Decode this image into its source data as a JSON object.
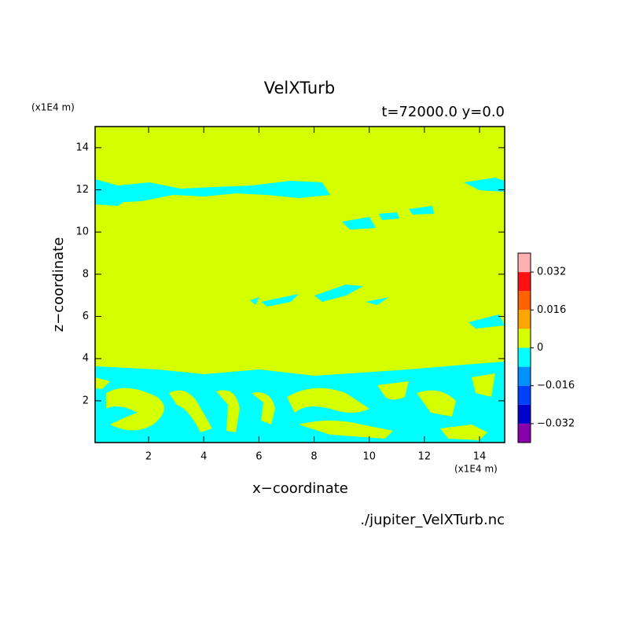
{
  "chart_data": {
    "type": "contour",
    "title": "VelXTurb",
    "subtitle": "t=72000.0 y=0.0",
    "x_label": "x−coordinate",
    "y_label": "z−coordinate",
    "x_unit": "(x1E4 m)",
    "y_unit": "(x1E4 m)",
    "source": "./jupiter_VelXTurb.nc",
    "xlim": [
      0.06,
      14.91
    ],
    "xticks": [
      2,
      4,
      6,
      8,
      10,
      12,
      14
    ],
    "ylim": [
      0.02,
      15
    ],
    "yticks": [
      2,
      4,
      6,
      8,
      10,
      12,
      14
    ],
    "colorbar": {
      "clim": [
        -0.04,
        0.04
      ],
      "ticks": [
        {
          "value": -0.032,
          "label": "−0.032"
        },
        {
          "value": -0.016,
          "label": "−0.016"
        },
        0,
        0.016,
        0.032
      ],
      "colors": [
        "#8800aa",
        "#0000cc",
        "#0040ff",
        "#0090ff",
        "#00ffff",
        "#d4ff00",
        "#ffa500",
        "#ff6000",
        "#ff1010",
        "#ffb0b0"
      ]
    }
  }
}
